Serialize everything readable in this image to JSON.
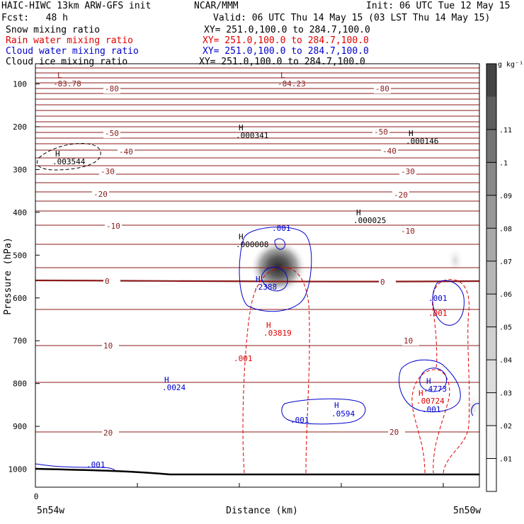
{
  "header": {
    "title": "HAIC-HIWC 13km ARW-GFS init",
    "org": "NCAR/MMM",
    "init": "Init: 06 UTC Tue 12 May 15",
    "fcst": "Fcst:   48 h",
    "valid": "Valid: 06 UTC Thu 14 May 15 (03 LST Thu 14 May 15)",
    "fields": [
      {
        "name": "Snow mixing ratio",
        "xy": "XY= 251.0,100.0 to 284.7,100.0",
        "color": "#000000"
      },
      {
        "name": "Rain water mixing ratio",
        "xy": "XY= 251.0,100.0 to 284.7,100.0",
        "color": "#e00000"
      },
      {
        "name": "Cloud water mixing ratio",
        "xy": "XY= 251.0,100.0 to 284.7,100.0",
        "color": "#0000cc"
      },
      {
        "name": "Cloud ice mixing ratio",
        "xy": "XY= 251.0,100.0 to 284.7,100.0",
        "color": "#000000"
      }
    ]
  },
  "chart_data": {
    "type": "contour",
    "xlabel": "Distance (km)",
    "ylabel": "Pressure (hPa)",
    "x_tick_labels": [
      "0"
    ],
    "x_end_labels": [
      "5n54w",
      "5n50w"
    ],
    "y_ticks": [
      100,
      200,
      300,
      400,
      500,
      600,
      700,
      800,
      900,
      1000
    ],
    "ylim": [
      1050,
      50
    ],
    "colorbar": {
      "unit": "g kg⁻¹",
      "labels": [
        ".01",
        ".02",
        ".03",
        ".04",
        ".05",
        ".06",
        ".07",
        ".08",
        ".09",
        ".1",
        ".11"
      ],
      "colors": [
        "#ffffff",
        "#f4f4f4",
        "#e8e8e8",
        "#dddddd",
        "#d0d0d0",
        "#c4c4c4",
        "#b6b6b6",
        "#a8a8a8",
        "#989898",
        "#888888",
        "#747474",
        "#5e5e5e",
        "#444444"
      ]
    },
    "temperature_contours": {
      "color": "#8b1a1a",
      "levels_labeled": [
        "-80",
        "-50",
        "-40",
        "-30",
        "-20",
        "-10",
        "0",
        "10",
        "20"
      ]
    },
    "annotations": [
      {
        "text": "L",
        "value": "-83.78",
        "color": "#8b1a1a"
      },
      {
        "text": "L",
        "value": "-84.23",
        "color": "#8b1a1a"
      },
      {
        "text": "H",
        "value": ".000341",
        "color": "#000000"
      },
      {
        "text": "H",
        "value": ".000146",
        "color": "#000000"
      },
      {
        "text": "H",
        "value": ".003544",
        "color": "#000000"
      },
      {
        "text": "H",
        "value": ".000025",
        "color": "#000000"
      },
      {
        "text": "H",
        "value": ".000008",
        "color": "#000000"
      },
      {
        "text": "H",
        "value": ".2388",
        "color": "#0000cc"
      },
      {
        "text": "H",
        "value": ".03819",
        "color": "#e00000"
      },
      {
        "text": "H",
        "value": ".0024",
        "color": "#0000cc"
      },
      {
        "text": "H",
        "value": ".0594",
        "color": "#0000cc"
      },
      {
        "text": "H",
        "value": ".4773",
        "color": "#0000cc"
      },
      {
        "text": "H",
        "value": ".00724",
        "color": "#e00000"
      }
    ],
    "contour_labels": [
      {
        "text": ".001",
        "color": "#0000cc"
      },
      {
        "text": ".001",
        "color": "#e00000"
      },
      {
        "text": ".001",
        "color": "#0000cc"
      },
      {
        "text": ".001",
        "color": "#e00000"
      },
      {
        "text": ".001",
        "color": "#0000cc"
      },
      {
        "text": ".001",
        "color": "#0000cc"
      },
      {
        "text": ".001",
        "color": "#0000cc"
      }
    ]
  }
}
